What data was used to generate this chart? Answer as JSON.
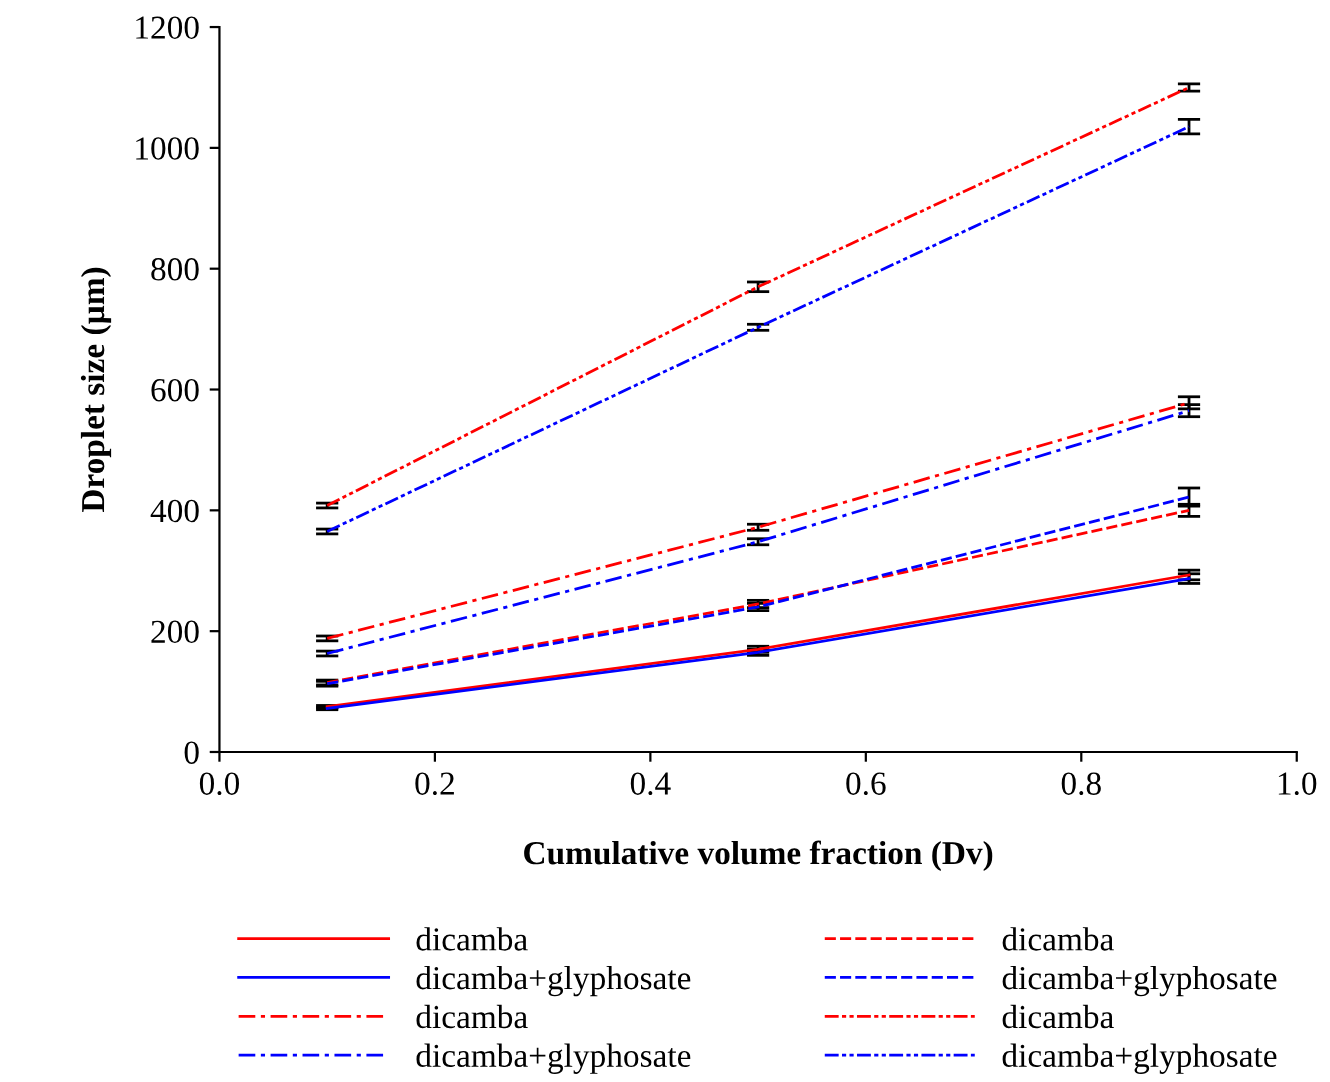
{
  "chart_data": {
    "type": "line",
    "xlabel": "Cumulative volume fraction (Dv)",
    "ylabel": "Droplet size (µm)",
    "x": [
      0.1,
      0.5,
      0.9
    ],
    "xlim": [
      0.0,
      1.0
    ],
    "xticks": [
      {
        "value": 0.0,
        "label": "0.0"
      },
      {
        "value": 0.2,
        "label": "0.2"
      },
      {
        "value": 0.4,
        "label": "0.4"
      },
      {
        "value": 0.6,
        "label": "0.6"
      },
      {
        "value": 0.8,
        "label": "0.8"
      },
      {
        "value": 1.0,
        "label": "1.0"
      }
    ],
    "ylim": [
      0,
      1200
    ],
    "yticks": [
      0,
      200,
      400,
      600,
      800,
      1000,
      1200
    ],
    "grid": false,
    "legend": "bottom",
    "marker": "none",
    "series": [
      {
        "name": "dicamba",
        "color": "#ff0000",
        "line_style": "solid",
        "values": [
          75,
          170,
          293
        ],
        "errors": [
          2,
          5,
          8
        ]
      },
      {
        "name": "dicamba+glyphosate",
        "color": "#0000ff",
        "line_style": "solid",
        "values": [
          72,
          165,
          287
        ],
        "errors": [
          2,
          5,
          8
        ]
      },
      {
        "name": "dicamba",
        "color": "#ff0000",
        "line_style": "dashdot",
        "values": [
          188,
          372,
          578
        ],
        "errors": [
          4,
          5,
          10
        ]
      },
      {
        "name": "dicamba+glyphosate",
        "color": "#0000ff",
        "line_style": "dashdot",
        "values": [
          163,
          348,
          565
        ],
        "errors": [
          4,
          5,
          10
        ]
      },
      {
        "name": "dicamba",
        "color": "#ff0000",
        "line_style": "dashed",
        "values": [
          115,
          245,
          400
        ],
        "errors": [
          4,
          6,
          10
        ]
      },
      {
        "name": "dicamba+glyphosate",
        "color": "#0000ff",
        "line_style": "dashed",
        "values": [
          113,
          240,
          422
        ],
        "errors": [
          4,
          6,
          15
        ]
      },
      {
        "name": "dicamba",
        "color": "#ff0000",
        "line_style": "dashdotdot",
        "values": [
          408,
          770,
          1100
        ],
        "errors": [
          4,
          8,
          6
        ]
      },
      {
        "name": "dicamba+glyphosate",
        "color": "#0000ff",
        "line_style": "dashdotdot",
        "values": [
          365,
          703,
          1035
        ],
        "errors": [
          4,
          5,
          12
        ]
      }
    ]
  }
}
